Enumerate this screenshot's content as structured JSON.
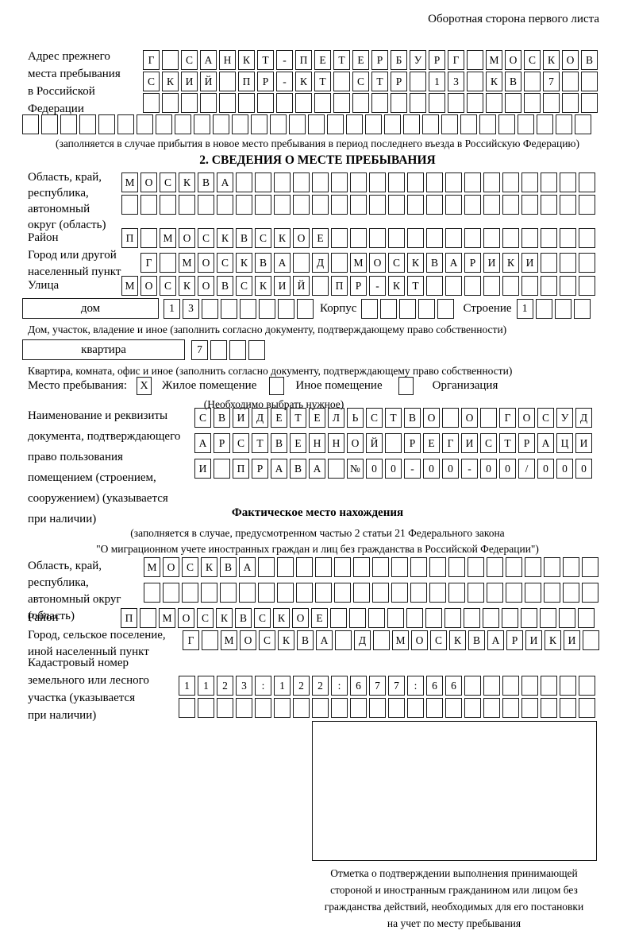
{
  "colors": {
    "text": "#000000",
    "border": "#1a1a1a",
    "background": "#ffffff"
  },
  "header_note": "Оборотная сторона первого листа",
  "section1": {
    "label": "Адрес прежнего\nместа пребывания\nв Российской\nФедерации",
    "row1": {
      "text": "Г САНКТ-ПЕТЕРБУРГ МОСКОВ",
      "len": 24
    },
    "row2": {
      "text": "СКИЙ ПР-КТ СТР 13 КВ 7",
      "len": 24
    },
    "row3": {
      "text": "",
      "len": 24
    },
    "row4": {
      "text": "",
      "len": 30
    },
    "caption": "(заполняется в случае прибытия в новое место пребывания в период последнего въезда в Российскую Федерацию)"
  },
  "section2": {
    "heading": "2. СВЕДЕНИЯ О МЕСТЕ ПРЕБЫВАНИЯ",
    "oblast": {
      "label": "Область, край,\nреспублика,\nавтономный\nокруг (область)",
      "row1": {
        "text": "МОСКВА",
        "len": 25
      },
      "row2": {
        "text": "",
        "len": 25
      }
    },
    "raion": {
      "label": "Район",
      "row1": {
        "text": "П МОСКВСКОЕ",
        "len": 25
      }
    },
    "gorod": {
      "label": "Город или другой\nнаселенный пункт",
      "row1": {
        "text": "Г МОСКВА Д МОСКВАРИКИ",
        "len": 24
      }
    },
    "ulitsa": {
      "label": "Улица",
      "row1": {
        "text": "МОСКОВСКИЙ ПР-КТ",
        "len": 25
      }
    },
    "dom": {
      "box_label": "дом",
      "cells": {
        "text": "13",
        "len": 8
      },
      "korpus_label": "Корпус",
      "korpus_cells": {
        "text": "",
        "len": 5
      },
      "stroenie_label": "Строение",
      "stroenie_cells": {
        "text": "1",
        "len": 4
      },
      "caption": "Дом, участок, владение и иное (заполнить согласно документу, подтверждающему право собственности)"
    },
    "kvartira": {
      "box_label": "квартира",
      "cells": {
        "text": "7",
        "len": 4
      },
      "caption": "Квартира, комната, офис и иное (заполнить согласно документу, подтверждающему право собственности)"
    },
    "mesto": {
      "label": "Место пребывания:",
      "checkbox1": "X",
      "opt1": "Жилое помещение",
      "checkbox2": "",
      "opt2": "Иное помещение",
      "checkbox3": "",
      "opt3": "Организация",
      "note": "(Необходимо выбрать нужное)"
    },
    "doc": {
      "label": "Наименование и реквизиты\nдокумента, подтверждающего\nправо пользования\nпомещением (строением,\nсооружением) (указывается\nпри наличии)",
      "row1": {
        "text": "СВИДЕТЕЛЬСТВО О ГОСУД",
        "len": 21
      },
      "row2": {
        "text": "АРСТВЕННОЙ РЕГИСТРАЦИ",
        "len": 21
      },
      "row3": {
        "text": "И ПРАВА №00-00-00/000",
        "len": 21
      }
    }
  },
  "section3": {
    "heading": "Фактическое место нахождения",
    "caption1": "(заполняется в случае, предусмотренном частью 2 статьи 21 Федерального закона",
    "caption2": "\"О миграционном учете иностранных граждан и лиц без гражданства в Российской Федерации\")",
    "oblast": {
      "label": "Область, край,\nреспублика,\nавтономный округ\n(область)",
      "row1": {
        "text": "МОСКВА",
        "len": 24
      },
      "row2": {
        "text": "",
        "len": 24
      }
    },
    "raion": {
      "label": "Район",
      "row1": {
        "text": "П МОСКВСКОЕ",
        "len": 25
      }
    },
    "gorod": {
      "label": "Город, сельское поселение,\nиной населенный пункт",
      "row1": {
        "text": "Г МОСКВА Д МОСКВАРИКИ",
        "len": 22
      }
    },
    "kadastr": {
      "label": "Кадастровый номер\nземельного или лесного\nучастка (указывается\nпри наличии)",
      "row1": {
        "text": "1123:122:677:66",
        "len": 22
      },
      "row2": {
        "text": "",
        "len": 22
      }
    },
    "stamp_caption": "Отметка о подтверждении выполнения принимающей\nстороной и иностранным гражданином или лицом без\nгражданства действий, необходимых для его постановки\nна учет по месту пребывания"
  }
}
